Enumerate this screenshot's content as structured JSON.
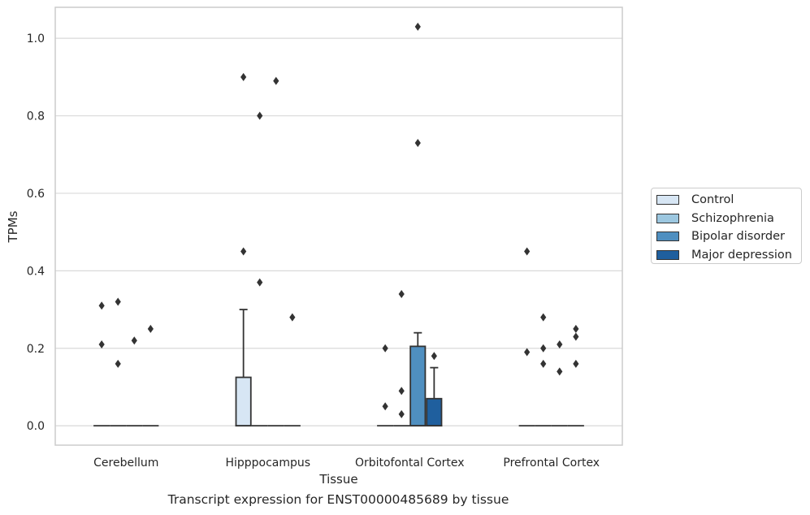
{
  "caption": "Transcript expression for ENST00000485689 by tissue",
  "chart_data": {
    "type": "box",
    "xlabel": "Tissue",
    "ylabel": "TPMs",
    "ylim": [
      -0.05,
      1.08
    ],
    "yticks": [
      0.0,
      0.2,
      0.4,
      0.6,
      0.8,
      1.0
    ],
    "ytick_labels": [
      "0.0",
      "0.2",
      "0.4",
      "0.6",
      "0.8",
      "1.0"
    ],
    "grid": true,
    "legend_position": "right",
    "categories": [
      "Cerebellum",
      "Hipppocampus",
      "Orbitofontal Cortex",
      "Prefrontal Cortex"
    ],
    "series": [
      {
        "name": "Control",
        "color": "#d7e6f4",
        "boxes": [
          {
            "q1": 0,
            "median": 0,
            "q3": 0,
            "whisker_low": 0,
            "whisker_high": 0,
            "outliers": [
              0.31,
              0.21
            ]
          },
          {
            "q1": 0,
            "median": 0,
            "q3": 0.125,
            "whisker_low": 0,
            "whisker_high": 0.3,
            "outliers": [
              0.9,
              0.45
            ]
          },
          {
            "q1": 0,
            "median": 0,
            "q3": 0,
            "whisker_low": 0,
            "whisker_high": 0,
            "outliers": [
              0.2,
              0.05
            ]
          },
          {
            "q1": 0,
            "median": 0,
            "q3": 0,
            "whisker_low": 0,
            "whisker_high": 0,
            "outliers": [
              0.45,
              0.19
            ]
          }
        ]
      },
      {
        "name": "Schizophrenia",
        "color": "#9cc7e0",
        "boxes": [
          {
            "q1": 0,
            "median": 0,
            "q3": 0,
            "whisker_low": 0,
            "whisker_high": 0,
            "outliers": [
              0.32,
              0.16
            ]
          },
          {
            "q1": 0,
            "median": 0,
            "q3": 0,
            "whisker_low": 0,
            "whisker_high": 0,
            "outliers": [
              0.8,
              0.37
            ]
          },
          {
            "q1": 0,
            "median": 0,
            "q3": 0,
            "whisker_low": 0,
            "whisker_high": 0,
            "outliers": [
              0.34,
              0.09,
              0.03
            ]
          },
          {
            "q1": 0,
            "median": 0,
            "q3": 0,
            "whisker_low": 0,
            "whisker_high": 0,
            "outliers": [
              0.28,
              0.2,
              0.16
            ]
          }
        ]
      },
      {
        "name": "Bipolar disorder",
        "color": "#4f8fc0",
        "boxes": [
          {
            "q1": 0,
            "median": 0,
            "q3": 0,
            "whisker_low": 0,
            "whisker_high": 0,
            "outliers": [
              0.22
            ]
          },
          {
            "q1": 0,
            "median": 0,
            "q3": 0,
            "whisker_low": 0,
            "whisker_high": 0,
            "outliers": [
              0.89
            ]
          },
          {
            "q1": 0,
            "median": 0,
            "q3": 0.205,
            "whisker_low": 0,
            "whisker_high": 0.24,
            "outliers": [
              1.03,
              0.73
            ]
          },
          {
            "q1": 0,
            "median": 0,
            "q3": 0,
            "whisker_low": 0,
            "whisker_high": 0,
            "outliers": [
              0.21,
              0.14
            ]
          }
        ]
      },
      {
        "name": "Major depression",
        "color": "#1f5f9e",
        "boxes": [
          {
            "q1": 0,
            "median": 0,
            "q3": 0,
            "whisker_low": 0,
            "whisker_high": 0,
            "outliers": [
              0.25
            ]
          },
          {
            "q1": 0,
            "median": 0,
            "q3": 0,
            "whisker_low": 0,
            "whisker_high": 0,
            "outliers": [
              0.28
            ]
          },
          {
            "q1": 0,
            "median": 0,
            "q3": 0.07,
            "whisker_low": 0,
            "whisker_high": 0.15,
            "outliers": [
              0.18
            ]
          },
          {
            "q1": 0,
            "median": 0,
            "q3": 0,
            "whisker_low": 0,
            "whisker_high": 0,
            "outliers": [
              0.25,
              0.23,
              0.16
            ]
          }
        ]
      }
    ]
  }
}
